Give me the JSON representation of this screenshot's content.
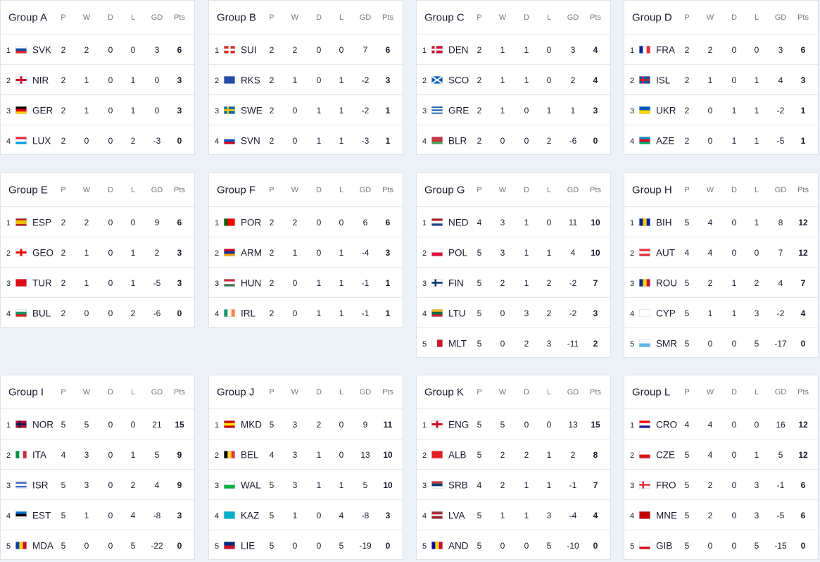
{
  "columns": [
    "P",
    "W",
    "D",
    "L",
    "GD",
    "Pts"
  ],
  "groups": [
    {
      "title": "Group A",
      "rows": [
        [
          1,
          "SVK",
          2,
          2,
          0,
          0,
          3,
          6
        ],
        [
          2,
          "NIR",
          2,
          1,
          0,
          1,
          0,
          3
        ],
        [
          3,
          "GER",
          2,
          1,
          0,
          1,
          0,
          3
        ],
        [
          4,
          "LUX",
          2,
          0,
          0,
          2,
          -3,
          0
        ]
      ]
    },
    {
      "title": "Group B",
      "rows": [
        [
          1,
          "SUI",
          2,
          2,
          0,
          0,
          7,
          6
        ],
        [
          2,
          "RKS",
          2,
          1,
          0,
          1,
          -2,
          3
        ],
        [
          3,
          "SWE",
          2,
          0,
          1,
          1,
          -2,
          1
        ],
        [
          4,
          "SVN",
          2,
          0,
          1,
          1,
          -3,
          1
        ]
      ]
    },
    {
      "title": "Group C",
      "rows": [
        [
          1,
          "DEN",
          2,
          1,
          1,
          0,
          3,
          4
        ],
        [
          2,
          "SCO",
          2,
          1,
          1,
          0,
          2,
          4
        ],
        [
          3,
          "GRE",
          2,
          1,
          0,
          1,
          1,
          3
        ],
        [
          4,
          "BLR",
          2,
          0,
          0,
          2,
          -6,
          0
        ]
      ]
    },
    {
      "title": "Group D",
      "rows": [
        [
          1,
          "FRA",
          2,
          2,
          0,
          0,
          3,
          6
        ],
        [
          2,
          "ISL",
          2,
          1,
          0,
          1,
          4,
          3
        ],
        [
          3,
          "UKR",
          2,
          0,
          1,
          1,
          -2,
          1
        ],
        [
          4,
          "AZE",
          2,
          0,
          1,
          1,
          -5,
          1
        ]
      ]
    },
    {
      "title": "Group E",
      "rows": [
        [
          1,
          "ESP",
          2,
          2,
          0,
          0,
          9,
          6
        ],
        [
          2,
          "GEO",
          2,
          1,
          0,
          1,
          2,
          3
        ],
        [
          3,
          "TUR",
          2,
          1,
          0,
          1,
          -5,
          3
        ],
        [
          4,
          "BUL",
          2,
          0,
          0,
          2,
          -6,
          0
        ]
      ]
    },
    {
      "title": "Group F",
      "rows": [
        [
          1,
          "POR",
          2,
          2,
          0,
          0,
          6,
          6
        ],
        [
          2,
          "ARM",
          2,
          1,
          0,
          1,
          -4,
          3
        ],
        [
          3,
          "HUN",
          2,
          0,
          1,
          1,
          -1,
          1
        ],
        [
          4,
          "IRL",
          2,
          0,
          1,
          1,
          -1,
          1
        ]
      ]
    },
    {
      "title": "Group G",
      "rows": [
        [
          1,
          "NED",
          4,
          3,
          1,
          0,
          11,
          10
        ],
        [
          2,
          "POL",
          5,
          3,
          1,
          1,
          4,
          10
        ],
        [
          3,
          "FIN",
          5,
          2,
          1,
          2,
          -2,
          7
        ],
        [
          4,
          "LTU",
          5,
          0,
          3,
          2,
          -2,
          3
        ],
        [
          5,
          "MLT",
          5,
          0,
          2,
          3,
          -11,
          2
        ]
      ]
    },
    {
      "title": "Group H",
      "rows": [
        [
          1,
          "BIH",
          5,
          4,
          0,
          1,
          8,
          12
        ],
        [
          2,
          "AUT",
          4,
          4,
          0,
          0,
          7,
          12
        ],
        [
          3,
          "ROU",
          5,
          2,
          1,
          2,
          4,
          7
        ],
        [
          4,
          "CYP",
          5,
          1,
          1,
          3,
          -2,
          4
        ],
        [
          5,
          "SMR",
          5,
          0,
          0,
          5,
          -17,
          0
        ]
      ]
    },
    {
      "title": "Group I",
      "rows": [
        [
          1,
          "NOR",
          5,
          5,
          0,
          0,
          21,
          15
        ],
        [
          2,
          "ITA",
          4,
          3,
          0,
          1,
          5,
          9
        ],
        [
          3,
          "ISR",
          5,
          3,
          0,
          2,
          4,
          9
        ],
        [
          4,
          "EST",
          5,
          1,
          0,
          4,
          -8,
          3
        ],
        [
          5,
          "MDA",
          5,
          0,
          0,
          5,
          -22,
          0
        ]
      ]
    },
    {
      "title": "Group J",
      "rows": [
        [
          1,
          "MKD",
          5,
          3,
          2,
          0,
          9,
          11
        ],
        [
          2,
          "BEL",
          4,
          3,
          1,
          0,
          13,
          10
        ],
        [
          3,
          "WAL",
          5,
          3,
          1,
          1,
          5,
          10
        ],
        [
          4,
          "KAZ",
          5,
          1,
          0,
          4,
          -8,
          3
        ],
        [
          5,
          "LIE",
          5,
          0,
          0,
          5,
          -19,
          0
        ]
      ]
    },
    {
      "title": "Group K",
      "rows": [
        [
          1,
          "ENG",
          5,
          5,
          0,
          0,
          13,
          15
        ],
        [
          2,
          "ALB",
          5,
          2,
          2,
          1,
          2,
          8
        ],
        [
          3,
          "SRB",
          4,
          2,
          1,
          1,
          -1,
          7
        ],
        [
          4,
          "LVA",
          5,
          1,
          1,
          3,
          -4,
          4
        ],
        [
          5,
          "AND",
          5,
          0,
          0,
          5,
          -10,
          0
        ]
      ]
    },
    {
      "title": "Group L",
      "rows": [
        [
          1,
          "CRO",
          4,
          4,
          0,
          0,
          16,
          12
        ],
        [
          2,
          "CZE",
          5,
          4,
          0,
          1,
          5,
          12
        ],
        [
          3,
          "FRO",
          5,
          2,
          0,
          3,
          -1,
          6
        ],
        [
          4,
          "MNE",
          5,
          2,
          0,
          3,
          -5,
          6
        ],
        [
          5,
          "GIB",
          5,
          0,
          0,
          5,
          -15,
          0
        ]
      ]
    }
  ]
}
